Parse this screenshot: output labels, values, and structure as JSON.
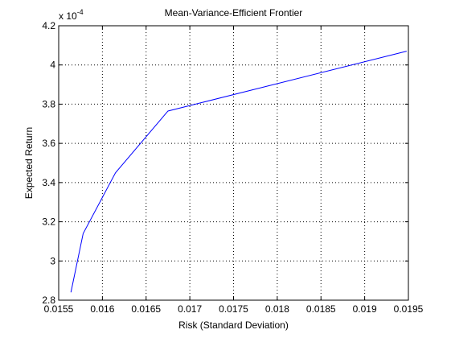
{
  "chart_data": {
    "type": "line",
    "title": "Mean-Variance-Efficient Frontier",
    "xlabel": "Risk (Standard Deviation)",
    "ylabel": "Expected Return",
    "y_multiplier_base": "x 10",
    "y_multiplier_exponent": "-4",
    "xlim": [
      0.0155,
      0.0195
    ],
    "ylim": [
      2.8,
      4.2
    ],
    "grid": true,
    "x_ticks": [
      0.0155,
      0.016,
      0.0165,
      0.017,
      0.0175,
      0.018,
      0.0185,
      0.019,
      0.0195
    ],
    "x_tick_labels": [
      "0.0155",
      "0.016",
      "0.0165",
      "0.017",
      "0.0175",
      "0.018",
      "0.0185",
      "0.019",
      "0.0195"
    ],
    "y_ticks": [
      2.8,
      3.0,
      3.2,
      3.4,
      3.6,
      3.8,
      4.0,
      4.2
    ],
    "y_tick_labels": [
      "2.8",
      "3",
      "3.2",
      "3.4",
      "3.6",
      "3.8",
      "4",
      "4.2"
    ],
    "series": [
      {
        "color": "#0000ff",
        "x": [
          0.01564,
          0.01578,
          0.01615,
          0.01675,
          0.01948
        ],
        "y": [
          2.84,
          3.14,
          3.45,
          3.765,
          4.07
        ]
      }
    ]
  }
}
